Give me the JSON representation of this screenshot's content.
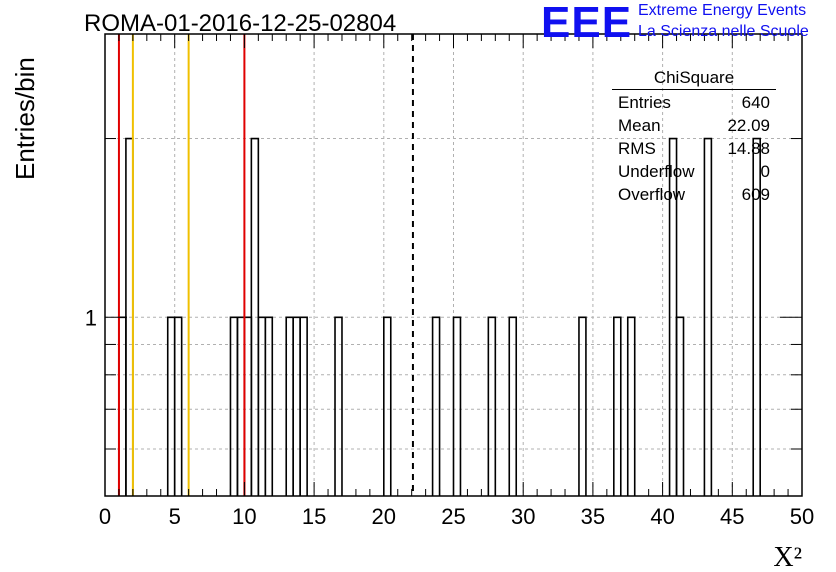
{
  "title": "ROMA-01-2016-12-25-02804",
  "logo": {
    "mark": "EEE",
    "line1": "Extreme Energy Events",
    "line2": "La Scienza nelle Scuole",
    "color": "#1010f0"
  },
  "stats": {
    "title": "ChiSquare",
    "rows": [
      {
        "key": "Entries",
        "value": "640"
      },
      {
        "key": "Mean",
        "value": "22.09"
      },
      {
        "key": "RMS",
        "value": "14.88"
      },
      {
        "key": "Underflow",
        "value": "0"
      },
      {
        "key": "Overflow",
        "value": "609"
      }
    ]
  },
  "chart_data": {
    "type": "bar",
    "histogram": true,
    "xlabel": "X²",
    "ylabel": "Entries/bin",
    "xlim": [
      0,
      50
    ],
    "ylim": [
      0.5,
      3
    ],
    "log_y": true,
    "grid": true,
    "xticks": [
      "0",
      "5",
      "10",
      "15",
      "20",
      "25",
      "30",
      "35",
      "40",
      "45",
      "50"
    ],
    "yticks": [
      "1"
    ],
    "bin_width": 0.5,
    "bins": [
      {
        "x": 1.0,
        "value": 1
      },
      {
        "x": 1.5,
        "value": 2
      },
      {
        "x": 4.5,
        "value": 1
      },
      {
        "x": 5.0,
        "value": 1
      },
      {
        "x": 9.0,
        "value": 1
      },
      {
        "x": 9.5,
        "value": 1
      },
      {
        "x": 10.0,
        "value": 1
      },
      {
        "x": 10.5,
        "value": 2
      },
      {
        "x": 11.0,
        "value": 1
      },
      {
        "x": 11.5,
        "value": 1
      },
      {
        "x": 13.0,
        "value": 1
      },
      {
        "x": 13.5,
        "value": 1
      },
      {
        "x": 14.0,
        "value": 1
      },
      {
        "x": 16.5,
        "value": 1
      },
      {
        "x": 20.0,
        "value": 1
      },
      {
        "x": 23.5,
        "value": 1
      },
      {
        "x": 25.0,
        "value": 1
      },
      {
        "x": 27.5,
        "value": 1
      },
      {
        "x": 29.0,
        "value": 1
      },
      {
        "x": 34.0,
        "value": 1
      },
      {
        "x": 36.5,
        "value": 1
      },
      {
        "x": 37.5,
        "value": 1
      },
      {
        "x": 40.5,
        "value": 2
      },
      {
        "x": 41.0,
        "value": 1
      },
      {
        "x": 43.0,
        "value": 2
      },
      {
        "x": 46.5,
        "value": 2
      }
    ],
    "markers": [
      {
        "x": 1,
        "color": "#e00000",
        "style": "solid"
      },
      {
        "x": 2,
        "color": "#f0c000",
        "style": "solid"
      },
      {
        "x": 6,
        "color": "#f0c000",
        "style": "solid"
      },
      {
        "x": 10,
        "color": "#e00000",
        "style": "solid"
      },
      {
        "x": 22.09,
        "color": "#000000",
        "style": "dashed"
      }
    ]
  }
}
